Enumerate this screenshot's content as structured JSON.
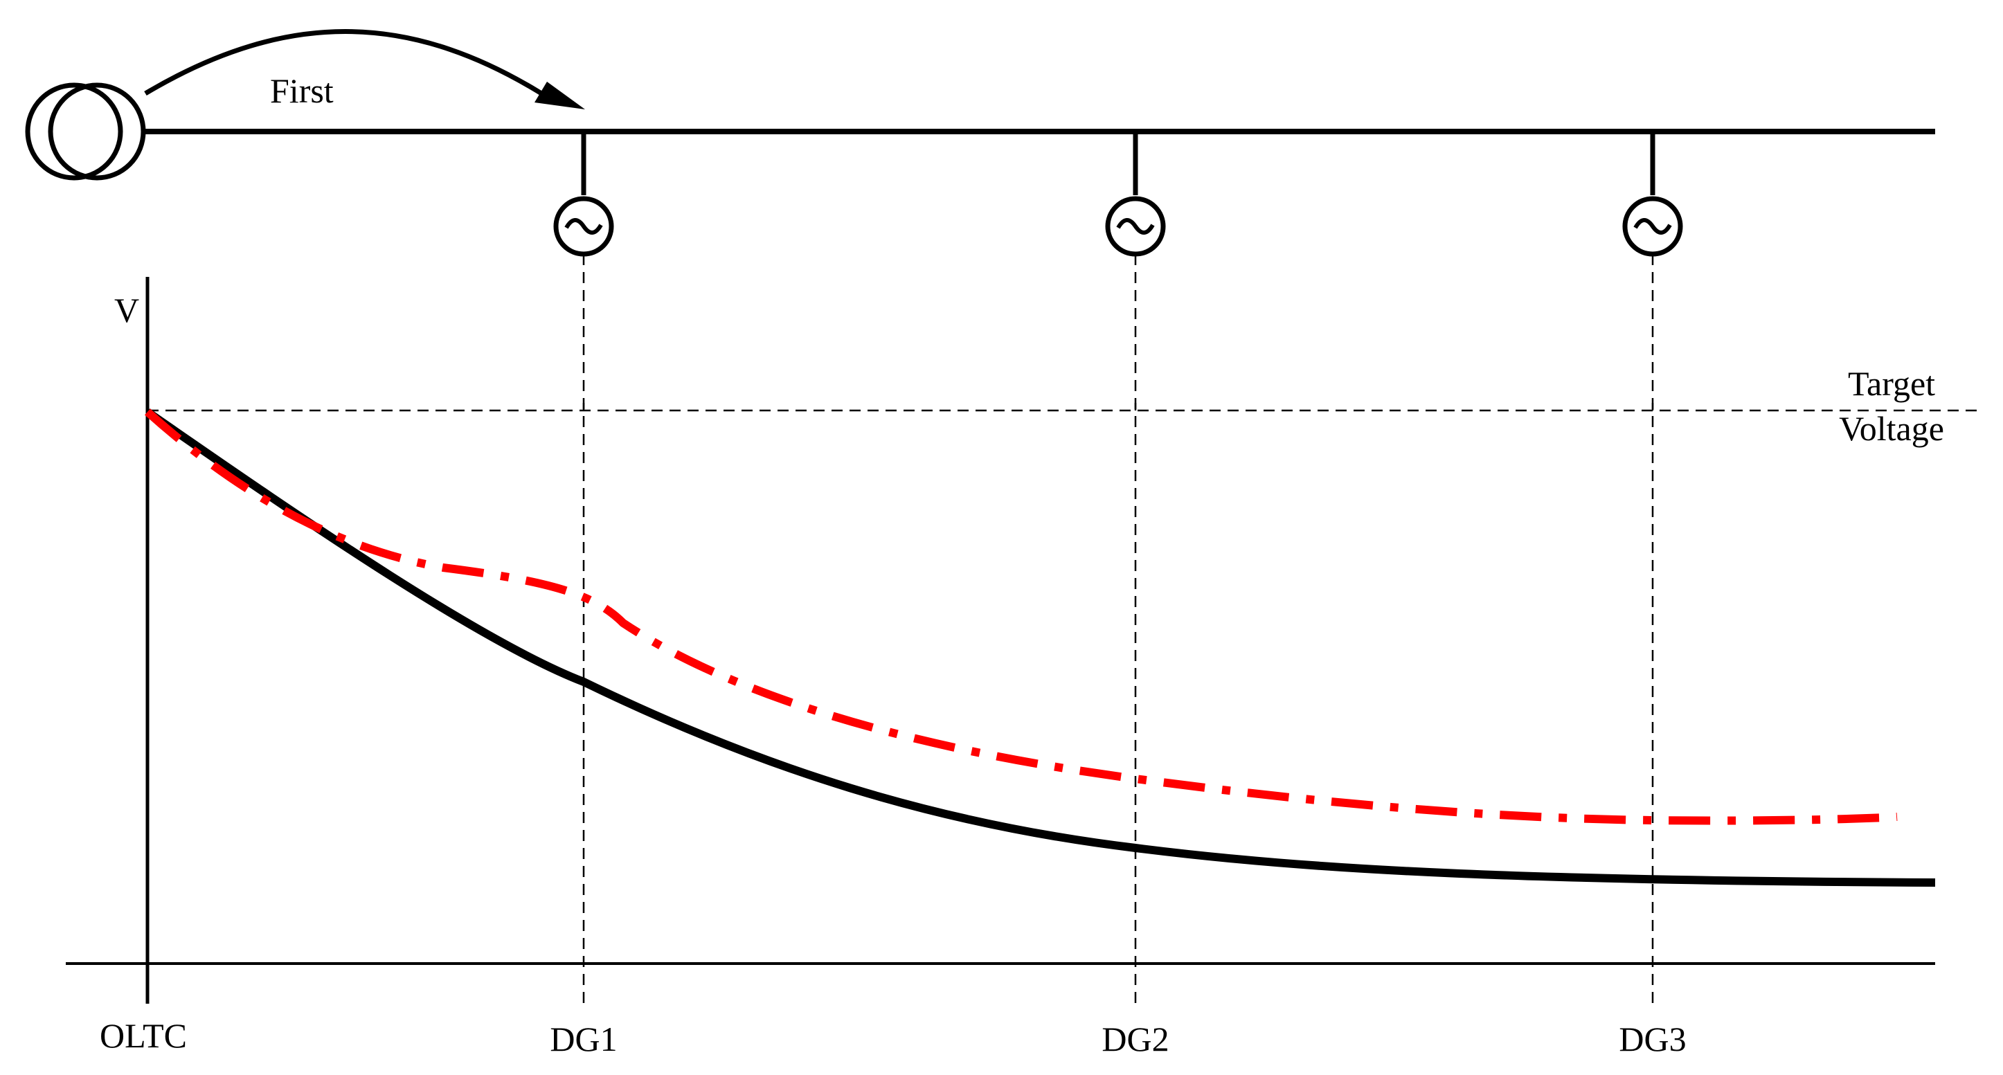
{
  "diagram": {
    "arrow_label": "First",
    "y_axis_label": "V",
    "target_label_line1": "Target",
    "target_label_line2": "Voltage",
    "x_labels": {
      "oltc": "OLTC",
      "dg1": "DG1",
      "dg2": "DG2",
      "dg3": "DG3"
    },
    "colors": {
      "base_profile": "#000000",
      "adjusted_profile": "#ff0000",
      "guides": "#000000"
    },
    "icons": {
      "transformer": "transformer-icon",
      "generator": "ac-generator-icon"
    }
  }
}
